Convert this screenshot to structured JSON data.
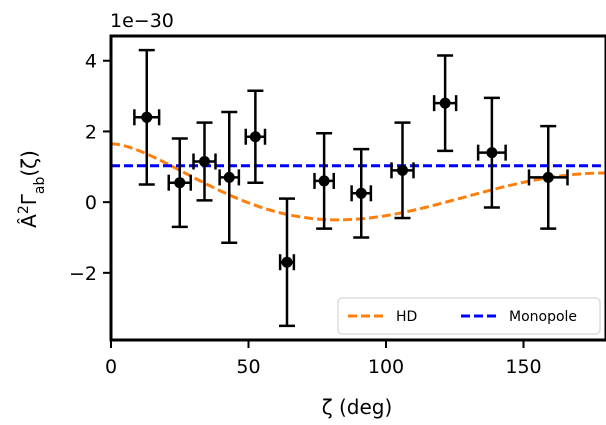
{
  "chart_data": {
    "type": "scatter",
    "xlabel": "ζ (deg)",
    "ylabel_base": "Â",
    "ylabel_sup": "2",
    "ylabel_gamma": "Γ",
    "ylabel_sub": "ab",
    "ylabel_arg": "(ζ)",
    "offset_text": "1e−30",
    "xlim": [
      0,
      180
    ],
    "ylim": [
      -3.9,
      4.7
    ],
    "xticks": [
      0,
      50,
      100,
      150
    ],
    "yticks": [
      -2,
      0,
      2,
      4
    ],
    "ytick_labels": [
      "−2",
      "0",
      "2",
      "4"
    ],
    "legend_position": "lower right",
    "series": [
      {
        "name": "data",
        "kind": "errorbar",
        "color": "#000000",
        "points": [
          {
            "x": 13,
            "y": 2.4,
            "xerr": 4.5,
            "yerr": 1.9
          },
          {
            "x": 25,
            "y": 0.55,
            "xerr": 4.0,
            "yerr": 1.25
          },
          {
            "x": 34,
            "y": 1.15,
            "xerr": 4.0,
            "yerr": 1.1
          },
          {
            "x": 43,
            "y": 0.7,
            "xerr": 3.5,
            "yerr": 1.85
          },
          {
            "x": 52.5,
            "y": 1.85,
            "xerr": 3.5,
            "yerr": 1.3
          },
          {
            "x": 64,
            "y": -1.7,
            "xerr": 2.5,
            "yerr": 1.8
          },
          {
            "x": 77.5,
            "y": 0.6,
            "xerr": 3.5,
            "yerr": 1.35
          },
          {
            "x": 91,
            "y": 0.25,
            "xerr": 3.5,
            "yerr": 1.25
          },
          {
            "x": 106,
            "y": 0.9,
            "xerr": 4.0,
            "yerr": 1.35
          },
          {
            "x": 121.5,
            "y": 2.8,
            "xerr": 4.0,
            "yerr": 1.35
          },
          {
            "x": 138.5,
            "y": 1.4,
            "xerr": 5.0,
            "yerr": 1.55
          },
          {
            "x": 159,
            "y": 0.7,
            "xerr": 7.0,
            "yerr": 1.45
          }
        ]
      },
      {
        "name": "HD",
        "kind": "line",
        "color": "#ff7f0e",
        "dash": true,
        "function": "hellings-downs",
        "scale": 3.3
      },
      {
        "name": "Monopole",
        "kind": "hline",
        "color": "#0000ff",
        "dash": true,
        "value": 1.03
      }
    ]
  }
}
